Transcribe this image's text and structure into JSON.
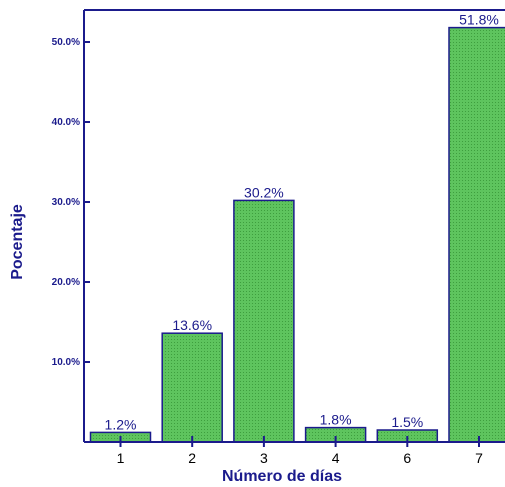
{
  "chart_data": {
    "type": "bar",
    "categories": [
      "1",
      "2",
      "3",
      "4",
      "6",
      "7"
    ],
    "values": [
      1.2,
      13.6,
      30.2,
      1.8,
      1.5,
      51.8
    ],
    "data_labels": [
      "1.2%",
      "13.6%",
      "30.2%",
      "1.8%",
      "1.5%",
      "51.8%"
    ],
    "title": "",
    "xlabel": "Número de días",
    "ylabel": "Pocentaje",
    "ylim": [
      0,
      54
    ],
    "yticks": [
      10,
      20,
      30,
      40,
      50
    ],
    "ytick_labels": [
      "10.0%",
      "20.0%",
      "30.0%",
      "40.0%",
      "50.0%"
    ],
    "grid": false,
    "legend": "none",
    "colors": {
      "bar_fill": "#5ec45e",
      "bar_stroke": "#1b1b8c",
      "axis": "#1b1b8c",
      "text": "#1b1b8c"
    }
  }
}
